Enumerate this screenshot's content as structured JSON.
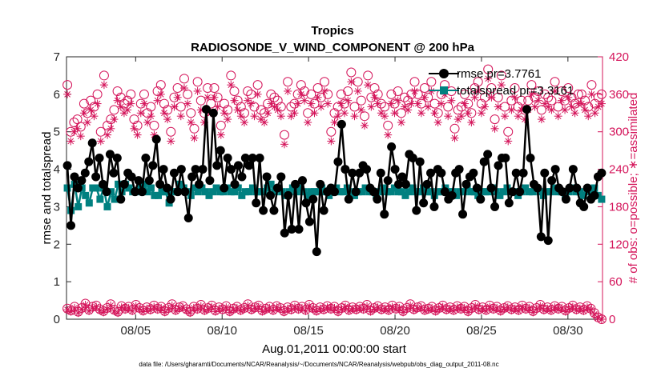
{
  "chart_data": {
    "type": "line",
    "title": "Tropics",
    "subtitle": "RADIOSONDE_V_WIND_COMPONENT @ 200 hPa",
    "xlabel": "Aug.01,2011 00:00:00 start",
    "ylabel_left": "rmse and totalspread",
    "ylabel_right": "# of obs: o=possible; ∗=assimilated",
    "footnote": "data file: /Users/gharamti/Documents/NCAR/Reanalysis/~/Documents/NCAR/Reanalysis/webpub/obs_diag_output_2011-08.nc",
    "xlim": [
      1,
      32
    ],
    "xticks": [
      5,
      10,
      15,
      20,
      25,
      30
    ],
    "xtick_labels": [
      "08/05",
      "08/10",
      "08/15",
      "08/20",
      "08/25",
      "08/30"
    ],
    "ylim_left": [
      0,
      7
    ],
    "yticks_left": [
      "0",
      "1",
      "2",
      "3",
      "4",
      "5",
      "6",
      "7"
    ],
    "ylim_right": [
      0,
      420
    ],
    "yticks_right": [
      "0",
      "60",
      "120",
      "180",
      "240",
      "300",
      "360",
      "420"
    ],
    "colors": {
      "rmse": "#000000",
      "spread": "#008080",
      "obs": "#d4145a"
    },
    "series": [
      {
        "name": "rmse pr=3.7761",
        "values": [
          4.1,
          2.5,
          3.8,
          3.5,
          3.7,
          3.9,
          4.2,
          4.7,
          3.8,
          4.3,
          3.6,
          3.4,
          4.4,
          3.9,
          4.3,
          3.2,
          3.6,
          3.9,
          3.8,
          3.4,
          3.7,
          3.4,
          4.3,
          3.7,
          4.1,
          4.8,
          3.6,
          4.0,
          3.5,
          3.2,
          3.9,
          3.4,
          4.0,
          3.4,
          2.7,
          3.8,
          4.0,
          3.6,
          4.0,
          5.6,
          3.7,
          5.5,
          4.1,
          4.5,
          3.5,
          4.3,
          4.0,
          3.6,
          4.1,
          3.8,
          4.3,
          4.1,
          4.3,
          3.1,
          4.3,
          2.9,
          3.8,
          3.3,
          2.9,
          3.5,
          3.8,
          2.3,
          3.3,
          2.4,
          3.6,
          2.4,
          3.7,
          3.1,
          2.6,
          3.2,
          1.8,
          3.6,
          2.9,
          3.4,
          3.5,
          3.4,
          4.2,
          5.2,
          4.0,
          3.2,
          3.9,
          3.4,
          3.9,
          4.1,
          4.0,
          3.5,
          3.4,
          3.2,
          3.9,
          2.8,
          3.7,
          4.6,
          4.0,
          3.6,
          3.8,
          3.6,
          4.4,
          4.3,
          2.9,
          4.2,
          3.1,
          3.6,
          3.9,
          3.0,
          4.0,
          3.9,
          3.4,
          3.2,
          3.3,
          3.9,
          4.0,
          2.8,
          3.6,
          3.8,
          3.9,
          3.5,
          3.2,
          4.2,
          4.4,
          3.5,
          3.0,
          4.1,
          4.3,
          4.3,
          3.1,
          3.4,
          3.9,
          3.4,
          3.9,
          5.6,
          4.3,
          3.6,
          3.5,
          2.2,
          3.9,
          2.1,
          3.7,
          4.0,
          3.5,
          3.4,
          3.2,
          3.5,
          4.0,
          3.5,
          3.1,
          3.0,
          3.5,
          3.2,
          3.3,
          3.8,
          3.9
        ]
      },
      {
        "name": "totalspread pr=3.3161",
        "values": [
          3.5,
          2.9,
          3.6,
          3.0,
          3.5,
          3.3,
          3.1,
          3.5,
          3.5,
          3.2,
          3.5,
          3.0,
          3.4,
          3.2,
          3.6,
          3.4,
          3.6,
          3.5,
          3.4,
          3.4,
          3.5,
          3.6,
          3.4,
          3.5,
          3.3,
          3.3,
          3.4,
          3.4,
          3.1,
          3.4,
          3.4,
          3.6,
          3.5,
          3.4,
          3.3,
          3.5,
          3.4,
          3.5,
          3.4,
          3.3,
          3.4,
          3.5,
          3.4,
          3.4,
          3.5,
          3.4,
          3.4,
          3.5,
          3.3,
          3.4,
          3.4,
          3.5,
          3.4,
          3.4,
          3.4,
          3.5,
          3.6,
          3.4,
          3.5,
          3.4,
          3.3,
          3.4,
          3.5,
          3.4,
          3.5,
          3.4,
          3.3,
          3.4,
          3.4,
          3.4,
          3.5,
          3.4,
          3.3,
          3.4,
          3.5,
          3.4,
          3.4,
          3.5,
          3.4,
          3.3,
          3.4,
          3.4,
          3.5,
          3.4,
          3.4,
          3.3,
          3.4,
          3.5,
          3.4,
          3.4,
          3.5,
          3.4,
          3.4,
          3.3,
          3.4,
          3.5,
          3.4,
          3.4,
          3.5,
          3.4,
          3.4,
          3.3,
          3.4,
          3.4,
          3.5,
          3.4,
          3.4,
          3.3,
          3.4,
          3.4,
          3.5,
          3.4,
          3.4,
          3.3,
          3.4,
          3.4,
          3.4,
          3.5,
          3.4,
          3.3,
          3.4,
          3.5,
          3.4,
          3.4,
          3.3,
          3.4,
          3.5,
          3.4,
          3.4,
          3.5,
          3.4,
          3.3,
          3.4,
          3.4,
          3.5,
          3.4,
          3.4,
          3.3,
          3.4,
          3.5,
          3.4,
          3.4,
          3.3,
          3.4,
          3.4,
          3.5,
          3.3,
          3.2
        ]
      },
      {
        "name": "possible",
        "axis": "right",
        "values": [
          17,
          14,
          20,
          12,
          18,
          25,
          15,
          20,
          22,
          16,
          13,
          18,
          24,
          15,
          12,
          21,
          17,
          20,
          15,
          23,
          18,
          14,
          19,
          16,
          22,
          17,
          20,
          13,
          18,
          24,
          15,
          19,
          21,
          16,
          12,
          20,
          17,
          23,
          15,
          18,
          22,
          14,
          19,
          16,
          21,
          13,
          17,
          20,
          15,
          18,
          24,
          16,
          19,
          22,
          14,
          17,
          20,
          15,
          21,
          18,
          13,
          19,
          16,
          22,
          17,
          20,
          15,
          23,
          18,
          14,
          19,
          16,
          21,
          17,
          20,
          13,
          18,
          22,
          15,
          19,
          16,
          20,
          17,
          23,
          14,
          18,
          21,
          16,
          19,
          15,
          22,
          17,
          20,
          13,
          18,
          24,
          16,
          19,
          21,
          15,
          17,
          20,
          14,
          18,
          22,
          16,
          19,
          15,
          21,
          17,
          20,
          13,
          18,
          23,
          16,
          19,
          15,
          22,
          17,
          20,
          14,
          18,
          21,
          16,
          19,
          15,
          22,
          17,
          20,
          13,
          18,
          23,
          16,
          19,
          15,
          21,
          17,
          20,
          14,
          18,
          22,
          16,
          19,
          15,
          21,
          17,
          10,
          3,
          0
        ]
      },
      {
        "name": "assimilated",
        "axis": "right",
        "values": [
          15,
          12,
          18,
          10,
          16,
          23,
          13,
          18,
          20,
          14,
          11,
          16,
          22,
          13,
          10,
          19,
          15,
          18,
          13,
          21,
          16,
          12,
          17,
          14,
          20,
          15,
          18,
          11,
          16,
          22,
          13,
          17,
          19,
          14,
          10,
          18,
          15,
          21,
          13,
          16,
          20,
          12,
          17,
          14,
          19,
          11,
          15,
          18,
          13,
          16,
          22,
          14,
          17,
          20,
          12,
          15,
          18,
          13,
          19,
          16,
          11,
          17,
          14,
          20,
          15,
          18,
          13,
          21,
          16,
          12,
          17,
          14,
          19,
          15,
          18,
          11,
          16,
          20,
          13,
          17,
          14,
          18,
          15,
          21,
          12,
          16,
          19,
          14,
          17,
          13,
          20,
          15,
          18,
          11,
          16,
          22,
          14,
          17,
          19,
          13,
          15,
          18,
          12,
          16,
          20,
          14,
          17,
          13,
          19,
          15,
          18,
          11,
          16,
          21,
          14,
          17,
          13,
          20,
          15,
          18,
          12,
          16,
          19,
          14,
          17,
          13,
          20,
          15,
          18,
          11,
          16,
          21,
          14,
          17,
          13,
          19,
          15,
          18,
          12,
          16,
          20,
          14,
          17,
          13,
          19,
          15,
          8,
          2,
          0
        ]
      },
      {
        "name": "possible",
        "axis": "right",
        "values": [
          375,
          300,
          315,
          320,
          308,
          345,
          330,
          350,
          340,
          360,
          300,
          390,
          310,
          320,
          335,
          365,
          355,
          345,
          350,
          360,
          320,
          310,
          345,
          360,
          330,
          340,
          310,
          365,
          375,
          345,
          335,
          300,
          355,
          370,
          340,
          385,
          360,
          330,
          305,
          380,
          350,
          330,
          370,
          345,
          370,
          355,
          310,
          345,
          335,
          390,
          365,
          350,
          340,
          330,
          365,
          360,
          340,
          375,
          335,
          330,
          345,
          360,
          355,
          350,
          340,
          295,
          380,
          340,
          345,
          360,
          375,
          365,
          330,
          360,
          345,
          370,
          355,
          380,
          360,
          300,
          330,
          340,
          360,
          345,
          365,
          395,
          340,
          380,
          350,
          325,
          390,
          355,
          370,
          360,
          345,
          340,
          310,
          360,
          345,
          365,
          330,
          355,
          350,
          360,
          380,
          360,
          345,
          370,
          355,
          380,
          345,
          330,
          360,
          375,
          340,
          365,
          305,
          335,
          340,
          360,
          345,
          330,
          370,
          380,
          345,
          355,
          400,
          370,
          320,
          355,
          390,
          340,
          300,
          350,
          370,
          340,
          350,
          335,
          350,
          375,
          355,
          365,
          335,
          360,
          355,
          350,
          380,
          340,
          365,
          350,
          370,
          355,
          345,
          360,
          360,
          350,
          340,
          375,
          345,
          355,
          360
        ]
      },
      {
        "name": "assimilated",
        "axis": "right",
        "values": [
          360,
          285,
          300,
          305,
          293,
          330,
          315,
          335,
          325,
          345,
          285,
          375,
          295,
          305,
          320,
          350,
          340,
          330,
          335,
          345,
          305,
          295,
          330,
          345,
          315,
          325,
          295,
          350,
          360,
          330,
          320,
          285,
          340,
          355,
          325,
          370,
          345,
          315,
          290,
          365,
          335,
          315,
          355,
          330,
          355,
          340,
          295,
          330,
          320,
          375,
          350,
          335,
          325,
          315,
          350,
          345,
          325,
          360,
          320,
          315,
          330,
          345,
          340,
          335,
          325,
          280,
          365,
          325,
          330,
          345,
          360,
          350,
          315,
          345,
          330,
          355,
          340,
          365,
          345,
          285,
          315,
          325,
          345,
          330,
          350,
          380,
          325,
          365,
          335,
          310,
          375,
          340,
          355,
          345,
          330,
          325,
          295,
          345,
          330,
          350,
          315,
          340,
          335,
          345,
          365,
          345,
          330,
          355,
          340,
          365,
          330,
          315,
          345,
          360,
          325,
          350,
          290,
          320,
          325,
          345,
          330,
          315,
          355,
          365,
          330,
          340,
          385,
          355,
          305,
          340,
          375,
          325,
          285,
          335,
          355,
          325,
          335,
          320,
          335,
          360,
          340,
          350,
          320,
          345,
          340,
          335,
          365,
          325,
          350,
          335,
          355,
          340,
          330,
          345,
          345,
          335,
          325,
          360,
          330,
          340,
          345
        ]
      },
      {
        "name": "legend-rmse",
        "label": "rmse pr=3.7761"
      },
      {
        "name": "legend-spread",
        "label": "totalspread pr=3.3161"
      }
    ]
  }
}
